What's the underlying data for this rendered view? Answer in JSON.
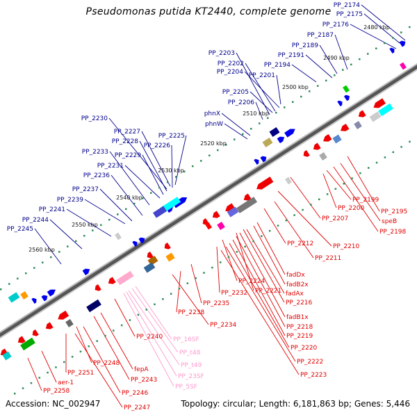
{
  "title": "Pseudomonas putida KT2440, complete genome",
  "footer": {
    "accession": "Accession: NC_002947",
    "summary": "Topology: circular; Length: 6,181,863 bp; Genes: 5,446"
  },
  "colors": {
    "label_plus": "#00008B",
    "label_minus": "#E00000",
    "label_rna": "#FF99CC",
    "gene_plus": "#0000EE",
    "gene_minus": "#EE0000",
    "backbone": "#555555",
    "ruler_dot": "#2E8B57"
  },
  "ticks": [
    "2480 kbp",
    "2490 kbp",
    "2500 kbp",
    "2510 kbp",
    "2520 kbp",
    "2530 kbp",
    "2540 kbp",
    "2550 kbp",
    "2560 kbp"
  ],
  "labels_top": [
    "PP_2174",
    "PP_2175",
    "PP_2176",
    "PP_2187",
    "PP_2189",
    "PP_2191",
    "PP_2203",
    "PP_2202",
    "PP_2204",
    "PP_2201",
    "PP_2194",
    "PP_2205",
    "PP_2206",
    "phnX",
    "phnW",
    "PP_2230",
    "PP_2227",
    "PP_2228",
    "PP_2225",
    "PP_2226",
    "PP_2229",
    "PP_2233",
    "PP_2231",
    "PP_2236",
    "PP_2237",
    "PP_2239",
    "PP_2241",
    "PP_2244",
    "PP_2245"
  ],
  "labels_bottom": [
    "PP_2199",
    "PP_2195",
    "PP_2200",
    "speB",
    "PP_2198",
    "PP_2207",
    "PP_2212",
    "PP_2210",
    "PP_2211",
    "fadDx",
    "fadB2x",
    "fadAx",
    "PP_2221",
    "PP_2224",
    "PP_2232",
    "PP_2216",
    "PP_2235",
    "PP_2238",
    "fadB1x",
    "PP_2234",
    "PP_2218",
    "PP_2219",
    "PP_2220",
    "PP_2222",
    "PP_2223",
    "PP_2240",
    "PP_2248",
    "fepA",
    "PP_2251",
    "PP_2243",
    "aer-1",
    "PP_2246",
    "PP_2258",
    "PP_2247"
  ],
  "labels_rna": [
    "PP_16SF",
    "PP_t48",
    "PP_t49",
    "PP_23SF",
    "PP_5SF"
  ]
}
